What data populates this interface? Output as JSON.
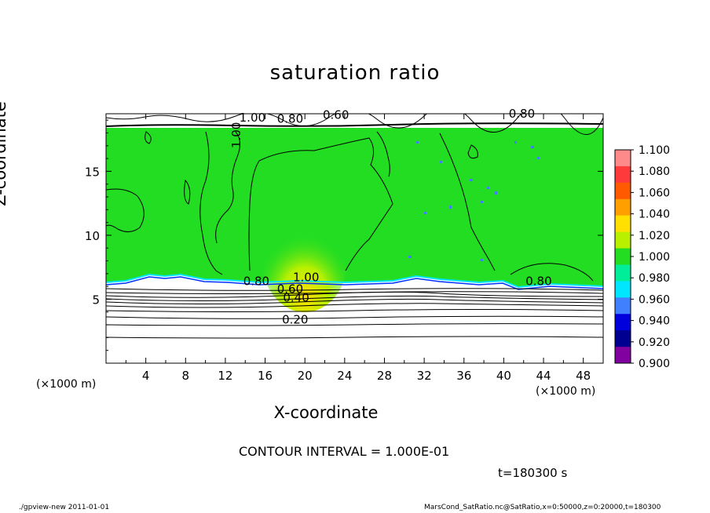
{
  "chart_data": {
    "type": "heatmap",
    "title": "saturation ratio",
    "xlabel": "X-coordinate",
    "ylabel": "Z-coordinate",
    "x_unit": "(×1000 m)",
    "x_unit_right": "(×1000 m)",
    "xlim": [
      0,
      50
    ],
    "ylim": [
      0,
      19.5
    ],
    "x_ticks": [
      "4",
      "8",
      "12",
      "16",
      "20",
      "24",
      "28",
      "32",
      "36",
      "40",
      "44",
      "48"
    ],
    "y_ticks": [
      "5",
      "10",
      "15"
    ],
    "colorbar": {
      "labels": [
        "1.100",
        "1.080",
        "1.060",
        "1.040",
        "1.020",
        "1.000",
        "0.980",
        "0.960",
        "0.940",
        "0.920",
        "0.900"
      ],
      "colors": [
        "#ff8a8a",
        "#ff3a3a",
        "#ff5a00",
        "#ffa000",
        "#ffe000",
        "#b8f000",
        "#22dd22",
        "#00ee99",
        "#00e6ff",
        "#4080ff",
        "#0000dd",
        "#000090",
        "#8000a0"
      ]
    },
    "contour_labels": [
      "1.00",
      "0.80",
      "1.00",
      "0.80",
      "0.60",
      "0.40",
      "0.20",
      "0.80",
      "0.60",
      "0.80",
      "1.00"
    ],
    "contour_interval": "CONTOUR INTERVAL = 1.000E-01",
    "time": "t=180300 s"
  },
  "footer": {
    "left": "./gpview-new   2011-01-01",
    "right": "MarsCond_SatRatio.nc@SatRatio,x=0:50000,z=0:20000,t=180300"
  }
}
